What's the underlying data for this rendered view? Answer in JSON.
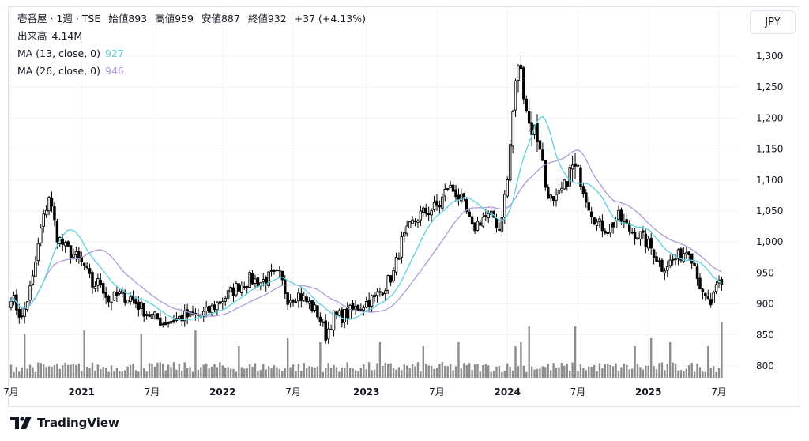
{
  "header": {
    "symbol": "壱番屋 · 1週 · TSE",
    "open_label": "始値",
    "open": "893",
    "high_label": "高値",
    "high": "959",
    "low_label": "安値",
    "low": "887",
    "close_label": "終値",
    "close": "932",
    "change": "+37 (+4.13%)",
    "volume_label": "出来高",
    "volume": "4.14M",
    "ma13_label": "MA (13, close, 0)",
    "ma13_value": "927",
    "ma26_label": "MA (26, close, 0)",
    "ma26_value": "946"
  },
  "currency_button": "JPY",
  "brand": "TradingView",
  "colors": {
    "ma13": "#5dd1df",
    "ma26": "#b09ad8",
    "candle": "#000000",
    "volume": "#8c8c8c",
    "grid": "#f0f3fa"
  },
  "chart_data": {
    "type": "candlestick",
    "interval": "1W",
    "currency": "JPY",
    "ylim": [
      780,
      1330
    ],
    "y_ticks": [
      "800",
      "850",
      "900",
      "950",
      "1,000",
      "1,050",
      "1,100",
      "1,150",
      "1,200",
      "1,250",
      "1,300"
    ],
    "x_ticks": [
      {
        "label": "7月",
        "major": false,
        "week": 0
      },
      {
        "label": "2021",
        "major": true,
        "week": 26
      },
      {
        "label": "7月",
        "major": false,
        "week": 52
      },
      {
        "label": "2022",
        "major": true,
        "week": 78
      },
      {
        "label": "7月",
        "major": false,
        "week": 104
      },
      {
        "label": "2023",
        "major": true,
        "week": 131
      },
      {
        "label": "7月",
        "major": false,
        "week": 157
      },
      {
        "label": "2024",
        "major": true,
        "week": 183
      },
      {
        "label": "7月",
        "major": false,
        "week": 209
      },
      {
        "label": "2025",
        "major": true,
        "week": 235
      },
      {
        "label": "7月",
        "major": false,
        "week": 261
      }
    ],
    "close_anchors": [
      [
        0,
        915
      ],
      [
        4,
        875
      ],
      [
        8,
        940
      ],
      [
        11,
        1020
      ],
      [
        14,
        1075
      ],
      [
        17,
        1010
      ],
      [
        20,
        990
      ],
      [
        23,
        980
      ],
      [
        27,
        960
      ],
      [
        30,
        930
      ],
      [
        33,
        935
      ],
      [
        36,
        905
      ],
      [
        40,
        915
      ],
      [
        44,
        910
      ],
      [
        49,
        890
      ],
      [
        52,
        880
      ],
      [
        56,
        870
      ],
      [
        60,
        875
      ],
      [
        64,
        880
      ],
      [
        68,
        880
      ],
      [
        72,
        885
      ],
      [
        76,
        900
      ],
      [
        80,
        915
      ],
      [
        84,
        930
      ],
      [
        88,
        940
      ],
      [
        92,
        935
      ],
      [
        96,
        945
      ],
      [
        99,
        945
      ],
      [
        102,
        910
      ],
      [
        106,
        915
      ],
      [
        110,
        900
      ],
      [
        113,
        885
      ],
      [
        116,
        850
      ],
      [
        119,
        880
      ],
      [
        122,
        880
      ],
      [
        126,
        890
      ],
      [
        130,
        900
      ],
      [
        134,
        910
      ],
      [
        138,
        930
      ],
      [
        141,
        950
      ],
      [
        144,
        1000
      ],
      [
        148,
        1030
      ],
      [
        151,
        1045
      ],
      [
        154,
        1050
      ],
      [
        158,
        1060
      ],
      [
        161,
        1090
      ],
      [
        164,
        1080
      ],
      [
        167,
        1060
      ],
      [
        170,
        1020
      ],
      [
        174,
        1040
      ],
      [
        178,
        1040
      ],
      [
        180,
        1020
      ],
      [
        183,
        1100
      ],
      [
        185,
        1210
      ],
      [
        187,
        1290
      ],
      [
        189,
        1250
      ],
      [
        191,
        1190
      ],
      [
        193,
        1180
      ],
      [
        195,
        1160
      ],
      [
        197,
        1090
      ],
      [
        200,
        1060
      ],
      [
        204,
        1090
      ],
      [
        207,
        1120
      ],
      [
        210,
        1100
      ],
      [
        213,
        1060
      ],
      [
        216,
        1030
      ],
      [
        220,
        1020
      ],
      [
        224,
        1040
      ],
      [
        228,
        1020
      ],
      [
        232,
        1010
      ],
      [
        236,
        990
      ],
      [
        240,
        960
      ],
      [
        244,
        970
      ],
      [
        247,
        980
      ],
      [
        250,
        990
      ],
      [
        253,
        950
      ],
      [
        255,
        910
      ],
      [
        258,
        900
      ],
      [
        261,
        932
      ]
    ],
    "volume_units": "relative (0-1 of volume pane)",
    "volume_spikes": [
      [
        5,
        0.55
      ],
      [
        27,
        0.6
      ],
      [
        48,
        0.55
      ],
      [
        68,
        0.6
      ],
      [
        84,
        0.4
      ],
      [
        102,
        0.5
      ],
      [
        114,
        0.45
      ],
      [
        136,
        0.45
      ],
      [
        152,
        0.4
      ],
      [
        165,
        0.45
      ],
      [
        186,
        0.4
      ],
      [
        188,
        0.45
      ],
      [
        191,
        0.65
      ],
      [
        208,
        0.65
      ],
      [
        230,
        0.4
      ],
      [
        236,
        0.5
      ],
      [
        243,
        0.45
      ],
      [
        257,
        0.4
      ],
      [
        262,
        0.7
      ]
    ]
  }
}
